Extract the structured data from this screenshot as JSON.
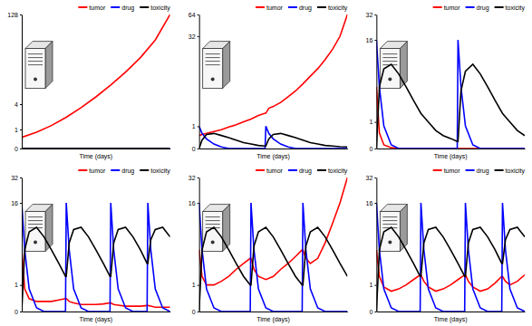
{
  "chart_data": [
    {
      "type": "line",
      "x_label": "Time (days)",
      "log": "y",
      "legend": "top-right",
      "tick_labels": "y",
      "xlim": [
        0,
        100
      ],
      "ylim": [
        0,
        128
      ],
      "yticks": [
        0,
        1,
        4,
        128
      ],
      "x": [
        0,
        10,
        20,
        30,
        40,
        50,
        60,
        70,
        80,
        90,
        100
      ],
      "series": [
        {
          "name": "tumor",
          "color": "#ff0000",
          "values": [
            0.5,
            0.8,
            1.3,
            2.1,
            3.4,
            5.5,
            9,
            15,
            26,
            50,
            128
          ]
        },
        {
          "name": "drug",
          "color": "#0000ff",
          "values": [
            0,
            0,
            0,
            0,
            0,
            0,
            0,
            0,
            0,
            0,
            0
          ]
        },
        {
          "name": "toxicity",
          "color": "#000000",
          "values": [
            0,
            0,
            0,
            0,
            0,
            0,
            0,
            0,
            0,
            0,
            0
          ]
        }
      ]
    },
    {
      "type": "line",
      "x_label": "Time (days)",
      "log": "y",
      "legend": "top-right",
      "tick_labels": "y",
      "xlim": [
        0,
        100
      ],
      "ylim": [
        0,
        64
      ],
      "yticks": [
        0,
        1,
        32,
        64
      ],
      "x": [
        0,
        2,
        5,
        10,
        15,
        20,
        25,
        30,
        35,
        40,
        44.5,
        45,
        47,
        50,
        55,
        60,
        65,
        70,
        75,
        80,
        85,
        90,
        95,
        100
      ],
      "series": [
        {
          "name": "tumor",
          "color": "#ff0000",
          "values": [
            0.5,
            0.55,
            0.6,
            0.7,
            0.8,
            0.95,
            1.1,
            1.3,
            1.5,
            1.8,
            2,
            2,
            2.5,
            2.7,
            3.2,
            4,
            5,
            6.5,
            8.5,
            11,
            15,
            21,
            32,
            64
          ]
        },
        {
          "name": "drug",
          "color": "#0000ff",
          "values": [
            1,
            0.6,
            0.35,
            0.15,
            0.05,
            0,
            0,
            0,
            0,
            0,
            0,
            1,
            0.6,
            0.35,
            0.15,
            0.05,
            0,
            0,
            0,
            0,
            0,
            0,
            0,
            0
          ]
        },
        {
          "name": "toxicity",
          "color": "#000000",
          "values": [
            0,
            0.3,
            0.55,
            0.6,
            0.5,
            0.4,
            0.3,
            0.2,
            0.15,
            0.1,
            0.08,
            0.08,
            0.35,
            0.55,
            0.6,
            0.5,
            0.4,
            0.3,
            0.2,
            0.15,
            0.1,
            0.08,
            0.06,
            0.05
          ]
        }
      ]
    },
    {
      "type": "line",
      "x_label": "Time (days)",
      "log": "y",
      "legend": "top-right",
      "tick_labels": "y",
      "xlim": [
        0,
        100
      ],
      "ylim": [
        0,
        32
      ],
      "yticks": [
        0,
        1,
        16,
        32
      ],
      "x": [
        0,
        2,
        5,
        10,
        15,
        20,
        25,
        30,
        35,
        40,
        45,
        50,
        54.5,
        55,
        57,
        60,
        65,
        70,
        75,
        80,
        85,
        90,
        95,
        100
      ],
      "series": [
        {
          "name": "tumor",
          "color": "#ff0000",
          "values": [
            4,
            0.5,
            0.1,
            0.02,
            0,
            0,
            0,
            0,
            0,
            0,
            0,
            0,
            0,
            0,
            0,
            0,
            0,
            0,
            0,
            0,
            0,
            0,
            0,
            0
          ]
        },
        {
          "name": "drug",
          "color": "#0000ff",
          "values": [
            16,
            4,
            0.8,
            0.1,
            0,
            0,
            0,
            0,
            0,
            0,
            0,
            0,
            0,
            16,
            4,
            0.8,
            0.1,
            0,
            0,
            0,
            0,
            0,
            0,
            0
          ]
        },
        {
          "name": "toxicity",
          "color": "#000000",
          "values": [
            0,
            4,
            7,
            8,
            6,
            4,
            2.5,
            1.5,
            1,
            0.6,
            0.4,
            0.3,
            0.2,
            0.2,
            3.5,
            6.5,
            8,
            6,
            4,
            2.5,
            1.5,
            1,
            0.6,
            0.4
          ]
        }
      ]
    },
    {
      "type": "line",
      "x_label": "Time (days)",
      "log": "y",
      "legend": "top-right",
      "tick_labels": "y",
      "xlim": [
        0,
        100
      ],
      "ylim": [
        0,
        32
      ],
      "yticks": [
        0,
        1,
        16,
        32
      ],
      "x": [
        0,
        2,
        5,
        10,
        15,
        20,
        25,
        29.5,
        30,
        32,
        35,
        40,
        45,
        50,
        55,
        59.5,
        60,
        62,
        65,
        70,
        75,
        80,
        84.5,
        85,
        87,
        90,
        95,
        100
      ],
      "series": [
        {
          "name": "tumor",
          "color": "#ff0000",
          "values": [
            4,
            0.8,
            0.4,
            0.3,
            0.3,
            0.3,
            0.35,
            0.4,
            0.4,
            0.3,
            0.25,
            0.2,
            0.2,
            0.2,
            0.22,
            0.25,
            0.25,
            0.2,
            0.18,
            0.15,
            0.15,
            0.15,
            0.17,
            0.17,
            0.15,
            0.12,
            0.12,
            0.12
          ]
        },
        {
          "name": "drug",
          "color": "#0000ff",
          "values": [
            16,
            4,
            0.8,
            0.1,
            0,
            0,
            0,
            0,
            16,
            4,
            0.8,
            0.1,
            0,
            0,
            0,
            0,
            16,
            4,
            0.8,
            0.1,
            0,
            0,
            0,
            16,
            4,
            0.8,
            0.1,
            0
          ]
        },
        {
          "name": "toxicity",
          "color": "#000000",
          "values": [
            0,
            4,
            7,
            8,
            6,
            4,
            2.5,
            1.5,
            1.5,
            5,
            7.5,
            8,
            6,
            4,
            2.5,
            1.5,
            1.5,
            5,
            7.5,
            8,
            6,
            4,
            2.5,
            2.5,
            5.5,
            7.5,
            8,
            6
          ]
        }
      ]
    },
    {
      "type": "line",
      "x_label": "Time (days)",
      "log": "y",
      "legend": "top-right",
      "tick_labels": "y",
      "xlim": [
        0,
        100
      ],
      "ylim": [
        0,
        32
      ],
      "yticks": [
        0,
        1,
        16,
        32
      ],
      "x": [
        0,
        2,
        5,
        10,
        15,
        20,
        25,
        30,
        34.5,
        35,
        37,
        40,
        45,
        50,
        55,
        60,
        65,
        69.5,
        70,
        72,
        75,
        80,
        85,
        90,
        95,
        100
      ],
      "series": [
        {
          "name": "tumor",
          "color": "#ff0000",
          "values": [
            4,
            1.5,
            1,
            1,
            1.2,
            1.5,
            2,
            2.5,
            3,
            3,
            2,
            1.5,
            1.3,
            1.5,
            2,
            2.5,
            3.2,
            4,
            4,
            3,
            2.5,
            3,
            5,
            9,
            16,
            32
          ]
        },
        {
          "name": "drug",
          "color": "#0000ff",
          "values": [
            16,
            4,
            0.8,
            0.1,
            0,
            0,
            0,
            0,
            0,
            16,
            4,
            0.8,
            0.1,
            0,
            0,
            0,
            0,
            0,
            16,
            4,
            0.8,
            0.1,
            0,
            0,
            0,
            0
          ]
        },
        {
          "name": "toxicity",
          "color": "#000000",
          "values": [
            0,
            4,
            7,
            8,
            6,
            4,
            2.5,
            1.5,
            1,
            1,
            4.5,
            7,
            8,
            6,
            4,
            2.5,
            1.5,
            1,
            1,
            4.5,
            7,
            8,
            6,
            4,
            2.5,
            1.5
          ]
        }
      ]
    },
    {
      "type": "line",
      "x_label": "Time (days)",
      "log": "y",
      "legend": "top-right",
      "tick_labels": "y",
      "xlim": [
        0,
        100
      ],
      "ylim": [
        0,
        32
      ],
      "yticks": [
        0,
        1,
        16,
        32
      ],
      "x": [
        0,
        2,
        5,
        10,
        15,
        20,
        25,
        29.5,
        30,
        32,
        35,
        40,
        45,
        50,
        55,
        59.5,
        60,
        62,
        65,
        70,
        75,
        80,
        84.5,
        85,
        87,
        90,
        95,
        100
      ],
      "series": [
        {
          "name": "tumor",
          "color": "#ff0000",
          "values": [
            4,
            1.5,
            0.9,
            0.7,
            0.8,
            1,
            1.3,
            1.6,
            1.6,
            1.2,
            0.9,
            0.7,
            0.8,
            1,
            1.3,
            1.6,
            1.6,
            1.2,
            0.9,
            0.7,
            0.8,
            1.1,
            1.5,
            1.5,
            1.2,
            1,
            1.2,
            1.6
          ]
        },
        {
          "name": "drug",
          "color": "#0000ff",
          "values": [
            16,
            4,
            0.8,
            0.1,
            0,
            0,
            0,
            0,
            16,
            4,
            0.8,
            0.1,
            0,
            0,
            0,
            0,
            16,
            4,
            0.8,
            0.1,
            0,
            0,
            0,
            16,
            4,
            0.8,
            0.1,
            0
          ]
        },
        {
          "name": "toxicity",
          "color": "#000000",
          "values": [
            0,
            4,
            7,
            8,
            6,
            4,
            2.5,
            1.5,
            1.5,
            5,
            7.5,
            8,
            6,
            4,
            2.5,
            1.5,
            1.5,
            5,
            7.5,
            8,
            6,
            4,
            2.5,
            2.5,
            5.5,
            7.5,
            8,
            6
          ]
        }
      ]
    }
  ]
}
